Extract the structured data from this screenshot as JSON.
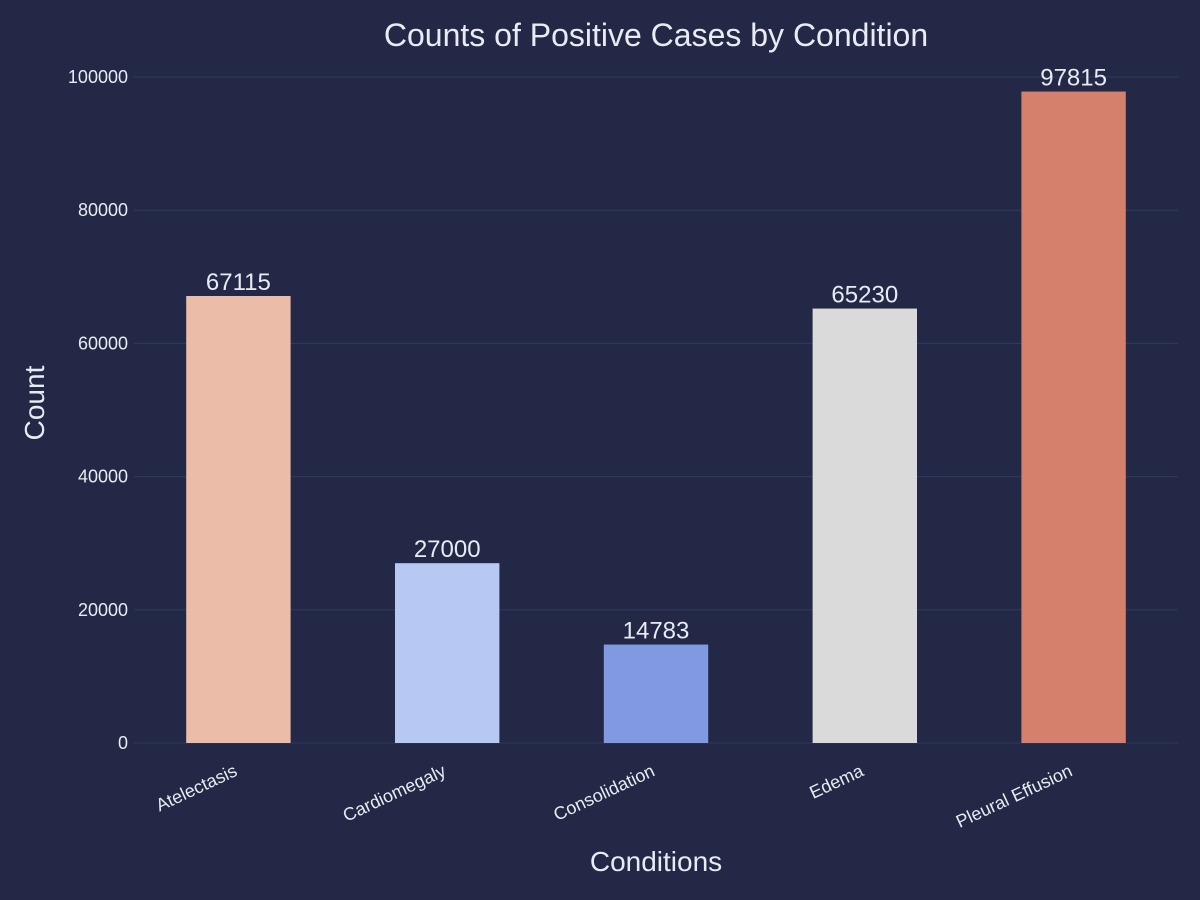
{
  "chart_data": {
    "type": "bar",
    "title": "Counts of Positive Cases by Condition",
    "xlabel": "Conditions",
    "ylabel": "Count",
    "categories": [
      "Atelectasis",
      "Cardiomegaly",
      "Consolidation",
      "Edema",
      "Pleural Effusion"
    ],
    "values": [
      67115,
      27000,
      14783,
      65230,
      97815
    ],
    "data_labels": [
      "67115",
      "27000",
      "14783",
      "65230",
      "97815"
    ],
    "bar_colors": [
      "#EBBDA8",
      "#B7C9F3",
      "#8099E1",
      "#DADADA",
      "#D5806D"
    ],
    "ylim": [
      0,
      100000
    ],
    "yticks": [
      0,
      20000,
      40000,
      60000,
      80000,
      100000
    ],
    "ytick_labels": [
      "0",
      "20000",
      "40000",
      "60000",
      "80000",
      "100000"
    ],
    "grid": true,
    "legend": "none"
  },
  "colors": {
    "background": "#222845",
    "text": "#e9ebf2",
    "grid": "#303a5e"
  }
}
